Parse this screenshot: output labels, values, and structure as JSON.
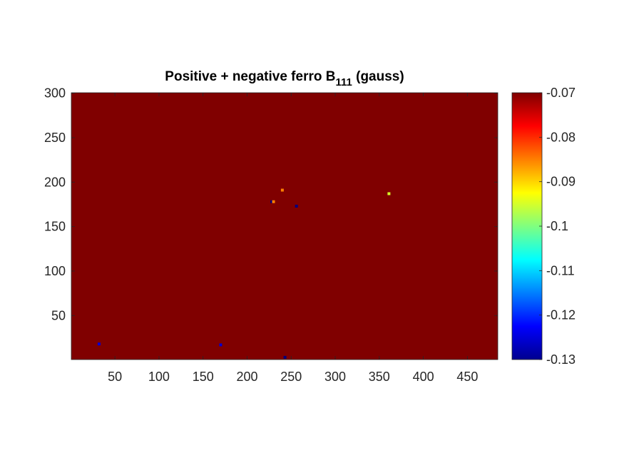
{
  "chart_data": {
    "type": "heatmap",
    "title": "Positive + negative ferro B",
    "title_subscript": "111",
    "title_suffix": " (gauss)",
    "xlabel": "",
    "ylabel": "",
    "xlim": [
      0.5,
      484.5
    ],
    "ylim": [
      0.5,
      300.5
    ],
    "xticks": [
      50,
      100,
      150,
      200,
      250,
      300,
      350,
      400,
      450
    ],
    "yticks": [
      50,
      100,
      150,
      200,
      250,
      300
    ],
    "colormap": "jet",
    "clim": [
      -0.13,
      -0.07
    ],
    "colorbar_ticks": [
      "-0.07",
      "-0.08",
      "-0.09",
      "-0.1",
      "-0.11",
      "-0.12",
      "-0.13"
    ],
    "colorbar_values": [
      -0.07,
      -0.08,
      -0.09,
      -0.1,
      -0.11,
      -0.12,
      -0.13
    ],
    "background_value": -0.07,
    "anomalies": [
      {
        "x": 228,
        "y": 178,
        "value": -0.13
      },
      {
        "x": 230,
        "y": 178,
        "value": -0.085
      },
      {
        "x": 256,
        "y": 173,
        "value": -0.13
      },
      {
        "x": 240,
        "y": 191,
        "value": -0.085
      },
      {
        "x": 361,
        "y": 187,
        "value": -0.095
      },
      {
        "x": 243,
        "y": 3,
        "value": -0.13
      },
      {
        "x": 170,
        "y": 17,
        "value": -0.125
      },
      {
        "x": 32,
        "y": 18,
        "value": -0.125
      }
    ],
    "grid": false
  },
  "colors": {
    "background_fill": "#800000",
    "axis": "#262626"
  }
}
